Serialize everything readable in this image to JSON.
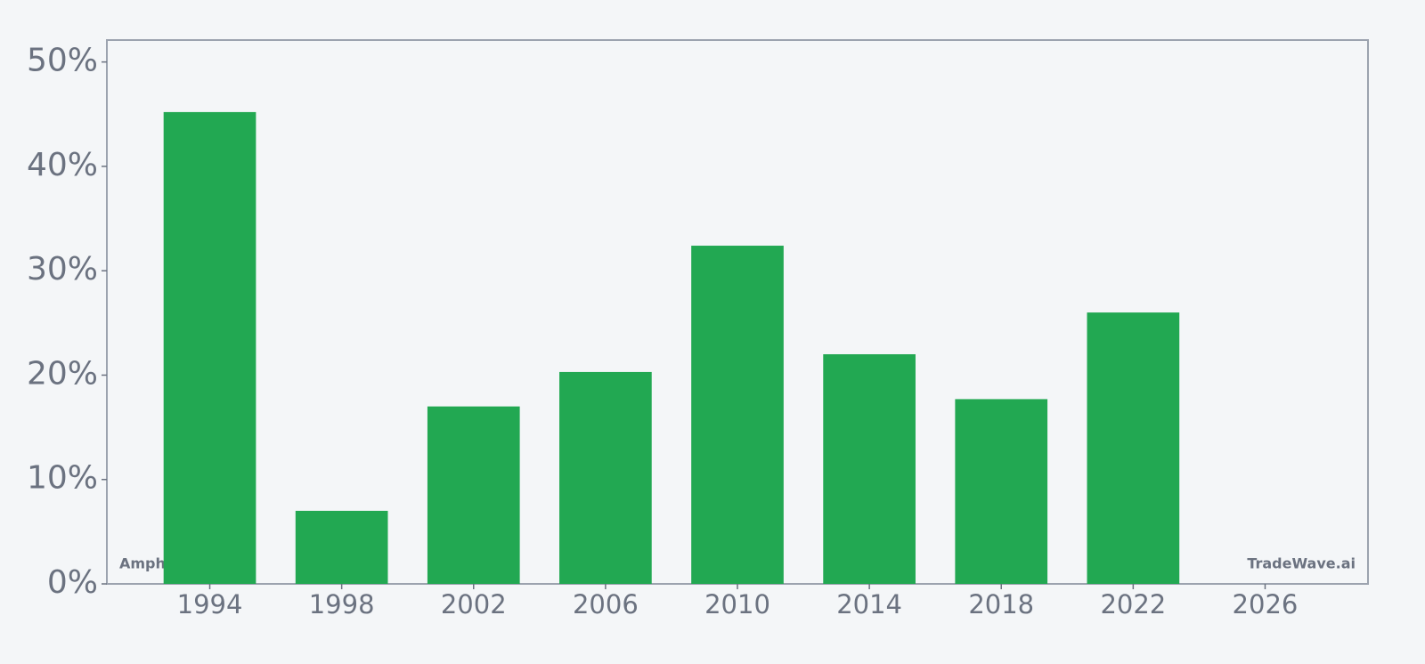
{
  "chart_data": {
    "type": "bar",
    "x": [
      1994,
      1998,
      2002,
      2006,
      2010,
      2014,
      2018,
      2022
    ],
    "values": [
      45.2,
      7.0,
      17.0,
      20.3,
      32.4,
      22.0,
      17.7,
      26.0
    ],
    "color": "#22a852",
    "xlim": [
      1990.88,
      2029.12
    ],
    "xticks": [
      1994,
      1998,
      2002,
      2006,
      2010,
      2014,
      2018,
      2022,
      2026
    ],
    "ylim": [
      0,
      52.1
    ],
    "yticks": [
      {
        "value": 0,
        "label": "0%"
      },
      {
        "value": 10,
        "label": "10%"
      },
      {
        "value": 20,
        "label": "20%"
      },
      {
        "value": 30,
        "label": "30%"
      },
      {
        "value": 40,
        "label": "40%"
      },
      {
        "value": 50,
        "label": "50%"
      }
    ],
    "annotations": [
      "Amphenol",
      "TradeWave.ai"
    ]
  }
}
